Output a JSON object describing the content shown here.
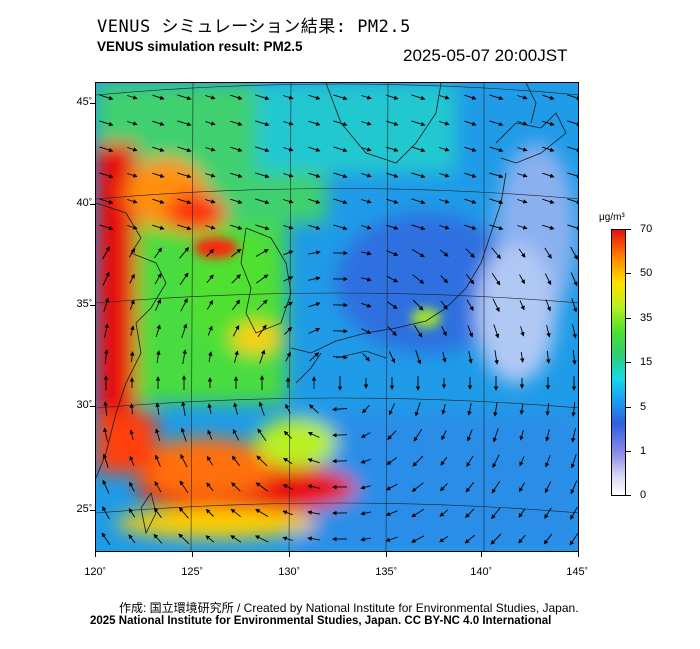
{
  "header": {
    "title_jp": "VENUS シミュレーション結果: PM2.5",
    "title_en": "VENUS simulation result: PM2.5",
    "timestamp": "2025-05-07 20:00JST"
  },
  "map": {
    "lat_labels": [
      "45",
      "40",
      "35",
      "30",
      "25"
    ],
    "lon_labels": [
      "120",
      "125",
      "130",
      "135",
      "140",
      "145"
    ],
    "degree_symbol": "°",
    "colors": {
      "sea_background": "#1e8fe8",
      "high_pm": "#e81010",
      "mid_pm": "#40d840",
      "low_pm": "#2f5fe0",
      "coastline": "#202020"
    }
  },
  "colorbar": {
    "unit": "μg/m³",
    "labels": [
      "70",
      "50",
      "35",
      "15",
      "5",
      "1",
      "0"
    ]
  },
  "footer": {
    "credit": "作成: 国立環境研究所 / Created by National Institute for Environmental Studies, Japan.",
    "license": "2025 National Institute for Environmental Studies, Japan. CC BY-NC 4.0 International"
  }
}
